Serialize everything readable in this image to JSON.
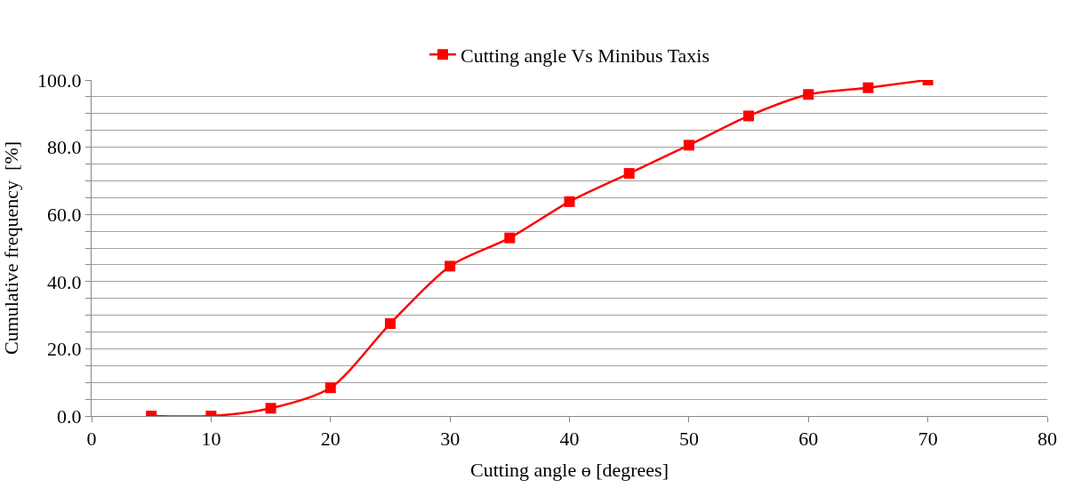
{
  "chart_data": {
    "type": "line",
    "xlabel": "Cutting angle ɵ [degrees]",
    "ylabel": "Cumulative frequency  [%]",
    "x": [
      5,
      10,
      15,
      20,
      25,
      30,
      35,
      40,
      45,
      50,
      55,
      60,
      65,
      70
    ],
    "series": [
      {
        "name": "Cutting angle Vs Minibus Taxis",
        "color": "#ff0000",
        "values": [
          0,
          0,
          2.3,
          8.4,
          27.5,
          44.6,
          53.0,
          63.8,
          72.2,
          80.6,
          89.3,
          95.7,
          97.7,
          100
        ]
      }
    ],
    "xlim": [
      0,
      80
    ],
    "xticks": [
      0,
      10,
      20,
      30,
      40,
      50,
      60,
      70,
      80
    ],
    "ylim": [
      0,
      100
    ],
    "yticks": [
      {
        "value": 0,
        "label": "0.0"
      },
      {
        "value": 5,
        "label": null
      },
      {
        "value": 10,
        "label": null
      },
      {
        "value": 15,
        "label": null
      },
      {
        "value": 20,
        "label": "20.0"
      },
      {
        "value": 25,
        "label": null
      },
      {
        "value": 30,
        "label": null
      },
      {
        "value": 35,
        "label": null
      },
      {
        "value": 40,
        "label": "40.0"
      },
      {
        "value": 45,
        "label": null
      },
      {
        "value": 50,
        "label": null
      },
      {
        "value": 55,
        "label": null
      },
      {
        "value": 60,
        "label": "60.0"
      },
      {
        "value": 65,
        "label": null
      },
      {
        "value": 70,
        "label": null
      },
      {
        "value": 75,
        "label": null
      },
      {
        "value": 80,
        "label": "80.0"
      },
      {
        "value": 85,
        "label": null
      },
      {
        "value": 90,
        "label": null
      },
      {
        "value": 95,
        "label": null
      },
      {
        "value": 100,
        "label": "100.0"
      }
    ],
    "grid": "y",
    "legend": "top",
    "marker": "square",
    "line_style": "solid"
  }
}
